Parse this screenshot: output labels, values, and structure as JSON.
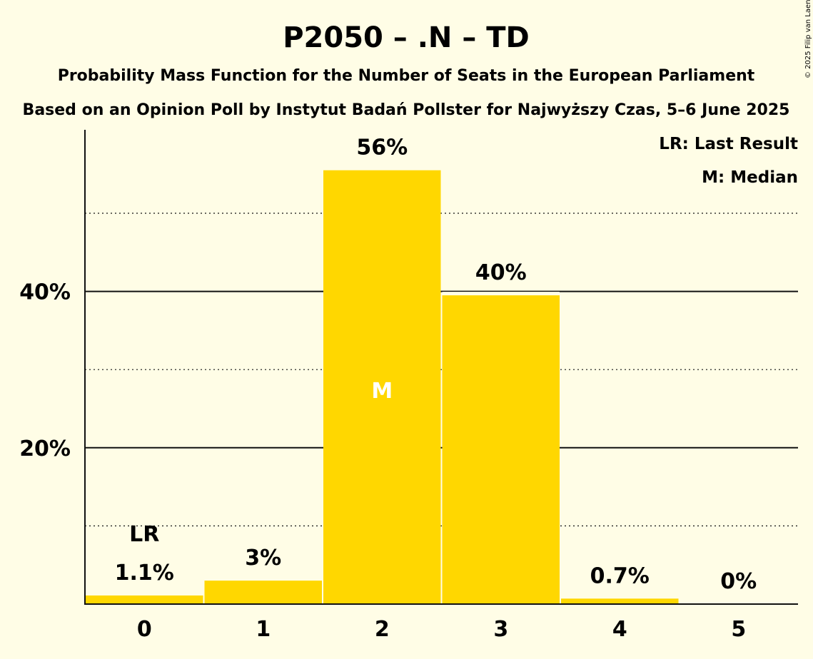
{
  "title": "P2050 – .N – TD",
  "subtitle1": "Probability Mass Function for the Number of Seats in the European Parliament",
  "subtitle2": "Based on an Opinion Poll by Instytut Badań Pollster for Najwyższy Czas, 5–6 June 2025",
  "copyright": "© 2025 Filip van Laenen",
  "legend": {
    "lr": "LR: Last Result",
    "m": "M: Median"
  },
  "colors": {
    "bar": "#FFD700",
    "background": "#FFFDE6"
  },
  "chart_data": {
    "type": "bar",
    "categories": [
      "0",
      "1",
      "2",
      "3",
      "4",
      "5"
    ],
    "values": [
      1.1,
      3,
      55.5,
      39.5,
      0.7,
      0
    ],
    "value_labels": [
      "1.1%",
      "3%",
      "56%",
      "40%",
      "0.7%",
      "0%"
    ],
    "ylim": [
      0,
      60
    ],
    "yticks": [
      20,
      40
    ],
    "ytick_labels": [
      "20%",
      "40%"
    ],
    "minor_gridlines": [
      10,
      30,
      50
    ],
    "last_result_index": 0,
    "last_result_label": "LR",
    "median_index": 2,
    "median_label": "M"
  }
}
